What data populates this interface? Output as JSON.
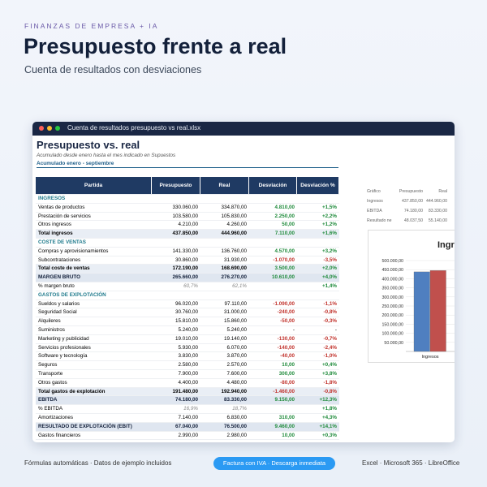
{
  "header": {
    "eyebrow": "FINANZAS DE EMPRESA + IA",
    "title": "Presupuesto frente a real",
    "subtitle": "Cuenta de resultados con desviaciones"
  },
  "window": {
    "title": "Cuenta de resultados presupuesto vs real.xlsx"
  },
  "sheet": {
    "title": "Presupuesto vs. real",
    "note": "Acumulado desde enero hasta el mes indicado en Supuestos",
    "period": "Acumulado enero - septiembre"
  },
  "table": {
    "columns": [
      "Partida",
      "Presupuesto",
      "Real",
      "Desviación",
      "Desviación %"
    ],
    "rows": [
      {
        "style": "section",
        "cells": [
          "INGRESOS"
        ]
      },
      {
        "style": "row",
        "cells": [
          "Ventas de productos",
          "330.060,00",
          "334.870,00",
          "4.810,00",
          "+1,5%"
        ]
      },
      {
        "style": "row",
        "cells": [
          "Prestación de servicios",
          "103.580,00",
          "105.830,00",
          "2.250,00",
          "+2,2%"
        ]
      },
      {
        "style": "row",
        "cells": [
          "Otros ingresos",
          "4.210,00",
          "4.260,00",
          "50,00",
          "+1,2%"
        ]
      },
      {
        "style": "total",
        "cells": [
          "Total ingresos",
          "437.850,00",
          "444.960,00",
          "7.110,00",
          "+1,6%"
        ]
      },
      {
        "style": "section",
        "cells": [
          "COSTE DE VENTAS"
        ]
      },
      {
        "style": "row",
        "cells": [
          "Compras y aprovisionamientos",
          "141.330,00",
          "136.760,00",
          "4.570,00",
          "+3,2%"
        ]
      },
      {
        "style": "row",
        "cells": [
          "Subcontrataciones",
          "30.860,00",
          "31.930,00",
          "-1.070,00",
          "-3,5%"
        ]
      },
      {
        "style": "total",
        "cells": [
          "Total coste de ventas",
          "172.190,00",
          "168.690,00",
          "3.500,00",
          "+2,0%"
        ]
      },
      {
        "style": "key",
        "cells": [
          "MARGEN BRUTO",
          "265.660,00",
          "276.270,00",
          "10.610,00",
          "+4,0%"
        ]
      },
      {
        "style": "pct",
        "cells": [
          "% margen bruto",
          "60,7%",
          "62,1%",
          "",
          "+1,4%"
        ]
      },
      {
        "style": "section",
        "cells": [
          "GASTOS DE EXPLOTACIÓN"
        ]
      },
      {
        "style": "row",
        "cells": [
          "Sueldos y salarios",
          "96.020,00",
          "97.110,00",
          "-1.090,00",
          "-1,1%"
        ]
      },
      {
        "style": "row",
        "cells": [
          "Seguridad Social",
          "30.760,00",
          "31.000,00",
          "-240,00",
          "-0,8%"
        ]
      },
      {
        "style": "row",
        "cells": [
          "Alquileres",
          "15.810,00",
          "15.860,00",
          "-50,00",
          "-0,3%"
        ]
      },
      {
        "style": "row",
        "cells": [
          "Suministros",
          "5.240,00",
          "5.240,00",
          "-",
          "-"
        ]
      },
      {
        "style": "row",
        "cells": [
          "Marketing y publicidad",
          "19.010,00",
          "19.140,00",
          "-130,00",
          "-0,7%"
        ]
      },
      {
        "style": "row",
        "cells": [
          "Servicios profesionales",
          "5.930,00",
          "6.070,00",
          "-140,00",
          "-2,4%"
        ]
      },
      {
        "style": "row",
        "cells": [
          "Software y tecnología",
          "3.830,00",
          "3.870,00",
          "-40,00",
          "-1,0%"
        ]
      },
      {
        "style": "row",
        "cells": [
          "Seguros",
          "2.580,00",
          "2.570,00",
          "10,00",
          "+0,4%"
        ]
      },
      {
        "style": "row",
        "cells": [
          "Transporte",
          "7.900,00",
          "7.600,00",
          "300,00",
          "+3,8%"
        ]
      },
      {
        "style": "row",
        "cells": [
          "Otros gastos",
          "4.400,00",
          "4.480,00",
          "-80,00",
          "-1,8%"
        ]
      },
      {
        "style": "total",
        "cells": [
          "Total gastos de explotación",
          "191.480,00",
          "192.940,00",
          "-1.460,00",
          "-0,8%"
        ]
      },
      {
        "style": "key",
        "cells": [
          "EBITDA",
          "74.180,00",
          "83.330,00",
          "9.150,00",
          "+12,3%"
        ]
      },
      {
        "style": "pct",
        "cells": [
          "% EBITDA",
          "16,9%",
          "18,7%",
          "",
          "+1,8%"
        ]
      },
      {
        "style": "row",
        "cells": [
          "Amortizaciones",
          "7.140,00",
          "6.830,00",
          "310,00",
          "+4,3%"
        ]
      },
      {
        "style": "key",
        "cells": [
          "RESULTADO DE EXPLOTACIÓN (EBIT)",
          "67.040,00",
          "76.500,00",
          "9.460,00",
          "+14,1%"
        ]
      },
      {
        "style": "row",
        "cells": [
          "Gastos financieros",
          "2.990,00",
          "2.980,00",
          "10,00",
          "+0,3%"
        ]
      }
    ]
  },
  "side_table": {
    "columns": [
      "Gráfico",
      "Presupuesto",
      "Real"
    ],
    "rows": [
      [
        "Ingresos",
        "437.850,00",
        "444.960,00"
      ],
      [
        "EBITDA",
        "74.180,00",
        "83.330,00"
      ],
      [
        "Resultado ne",
        "48.037,50",
        "55.140,00"
      ]
    ]
  },
  "chart": {
    "type": "bar",
    "title": "Ingr",
    "categories": [
      "Ingresos"
    ],
    "series": [
      {
        "color": "#4f7fc0",
        "values": [
          437850
        ]
      },
      {
        "color": "#c0504d",
        "values": [
          444960
        ]
      }
    ],
    "ylim": [
      0,
      500000
    ],
    "yticks": [
      {
        "value": 50000,
        "label": "50.000,00"
      },
      {
        "value": 100000,
        "label": "100.000,00"
      },
      {
        "value": 150000,
        "label": "150.000,00"
      },
      {
        "value": 200000,
        "label": "200.000,00"
      },
      {
        "value": 250000,
        "label": "250.000,00"
      },
      {
        "value": 300000,
        "label": "300.000,00"
      },
      {
        "value": 350000,
        "label": "350.000,00"
      },
      {
        "value": 400000,
        "label": "400.000,00"
      },
      {
        "value": 450000,
        "label": "450.000,00"
      },
      {
        "value": 500000,
        "label": "500.000,00"
      }
    ],
    "grid": true
  },
  "footer": {
    "left": "Fórmulas automáticas · Datos de ejemplo incluidos",
    "button": "Factura con IVA · Descarga inmediata",
    "right": "Excel · Microsoft 365 · LibreOffice"
  }
}
